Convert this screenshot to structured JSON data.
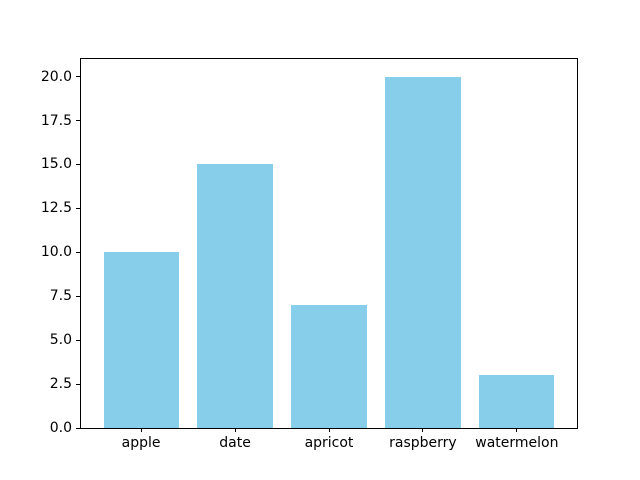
{
  "figure": {
    "background_color": "#ffffff",
    "spine_color": "#000000",
    "tick_color": "#000000"
  },
  "chart_data": {
    "type": "bar",
    "title": "",
    "xlabel": "",
    "ylabel": "",
    "categories": [
      "apple",
      "date",
      "apricot",
      "raspberry",
      "watermelon"
    ],
    "values": [
      10,
      15,
      7,
      20,
      3
    ],
    "bar_color": "#87CEEB",
    "bar_width": 0.8,
    "ylim": [
      0,
      21
    ],
    "xlim": [
      -0.64,
      4.64
    ],
    "yticks": [
      0.0,
      2.5,
      5.0,
      7.5,
      10.0,
      12.5,
      15.0,
      17.5,
      20.0
    ],
    "ytick_labels": [
      "0.0",
      "2.5",
      "5.0",
      "7.5",
      "10.0",
      "12.5",
      "15.0",
      "17.5",
      "20.0"
    ],
    "grid": false,
    "legend": null
  }
}
